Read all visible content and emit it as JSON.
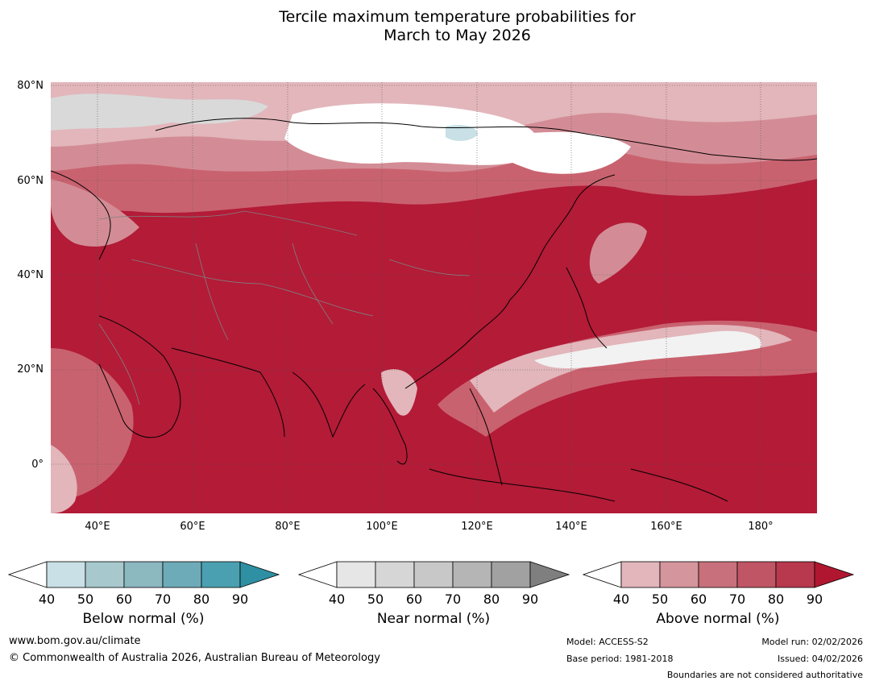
{
  "title": {
    "line1": "Tercile maximum temperature probabilities for",
    "line2": "March to May 2026"
  },
  "map": {
    "lat_labels": [
      "80°N",
      "60°N",
      "40°N",
      "20°N",
      "0°"
    ],
    "lon_labels": [
      "40°E",
      "60°E",
      "80°E",
      "100°E",
      "120°E",
      "140°E",
      "160°E",
      "180°"
    ],
    "colors": {
      "above_90": "#b31b37",
      "above_80": "#c03a4e",
      "above_70": "#c9626f",
      "above_60": "#d38c95",
      "above_50": "#e2b6bb",
      "near_40": "#f2f2f2",
      "near_50": "#d9d9d9",
      "below_50": "#c8e0e6",
      "white": "#ffffff"
    }
  },
  "colorbars": [
    {
      "caption": "Below normal (%)",
      "ticks": [
        "40",
        "50",
        "60",
        "70",
        "80",
        "90"
      ],
      "colors": [
        "#ffffff",
        "#c8e0e6",
        "#a7c9ce",
        "#8cb8c0",
        "#6eabb8",
        "#4aa0b0",
        "#2f8fa3"
      ]
    },
    {
      "caption": "Near normal (%)",
      "ticks": [
        "40",
        "50",
        "60",
        "70",
        "80",
        "90"
      ],
      "colors": [
        "#ffffff",
        "#e6e6e6",
        "#d6d6d6",
        "#c8c8c8",
        "#b5b5b5",
        "#a1a1a1",
        "#7f7f7f"
      ]
    },
    {
      "caption": "Above normal (%)",
      "ticks": [
        "40",
        "50",
        "60",
        "70",
        "80",
        "90"
      ],
      "colors": [
        "#ffffff",
        "#e2b6bb",
        "#d5959c",
        "#c8707b",
        "#c05565",
        "#b8384d",
        "#b0162f"
      ]
    }
  ],
  "footer": {
    "website": "www.bom.gov.au/climate",
    "copyright": "© Commonwealth of Australia 2026, Australian Bureau of Meteorology",
    "model": "Model: ACCESS-S2",
    "base_period": "Base period: 1981-2018",
    "model_run": "Model run: 02/02/2026",
    "issued": "Issued: 04/02/2026",
    "disclaimer": "Boundaries are not considered authoritative"
  }
}
